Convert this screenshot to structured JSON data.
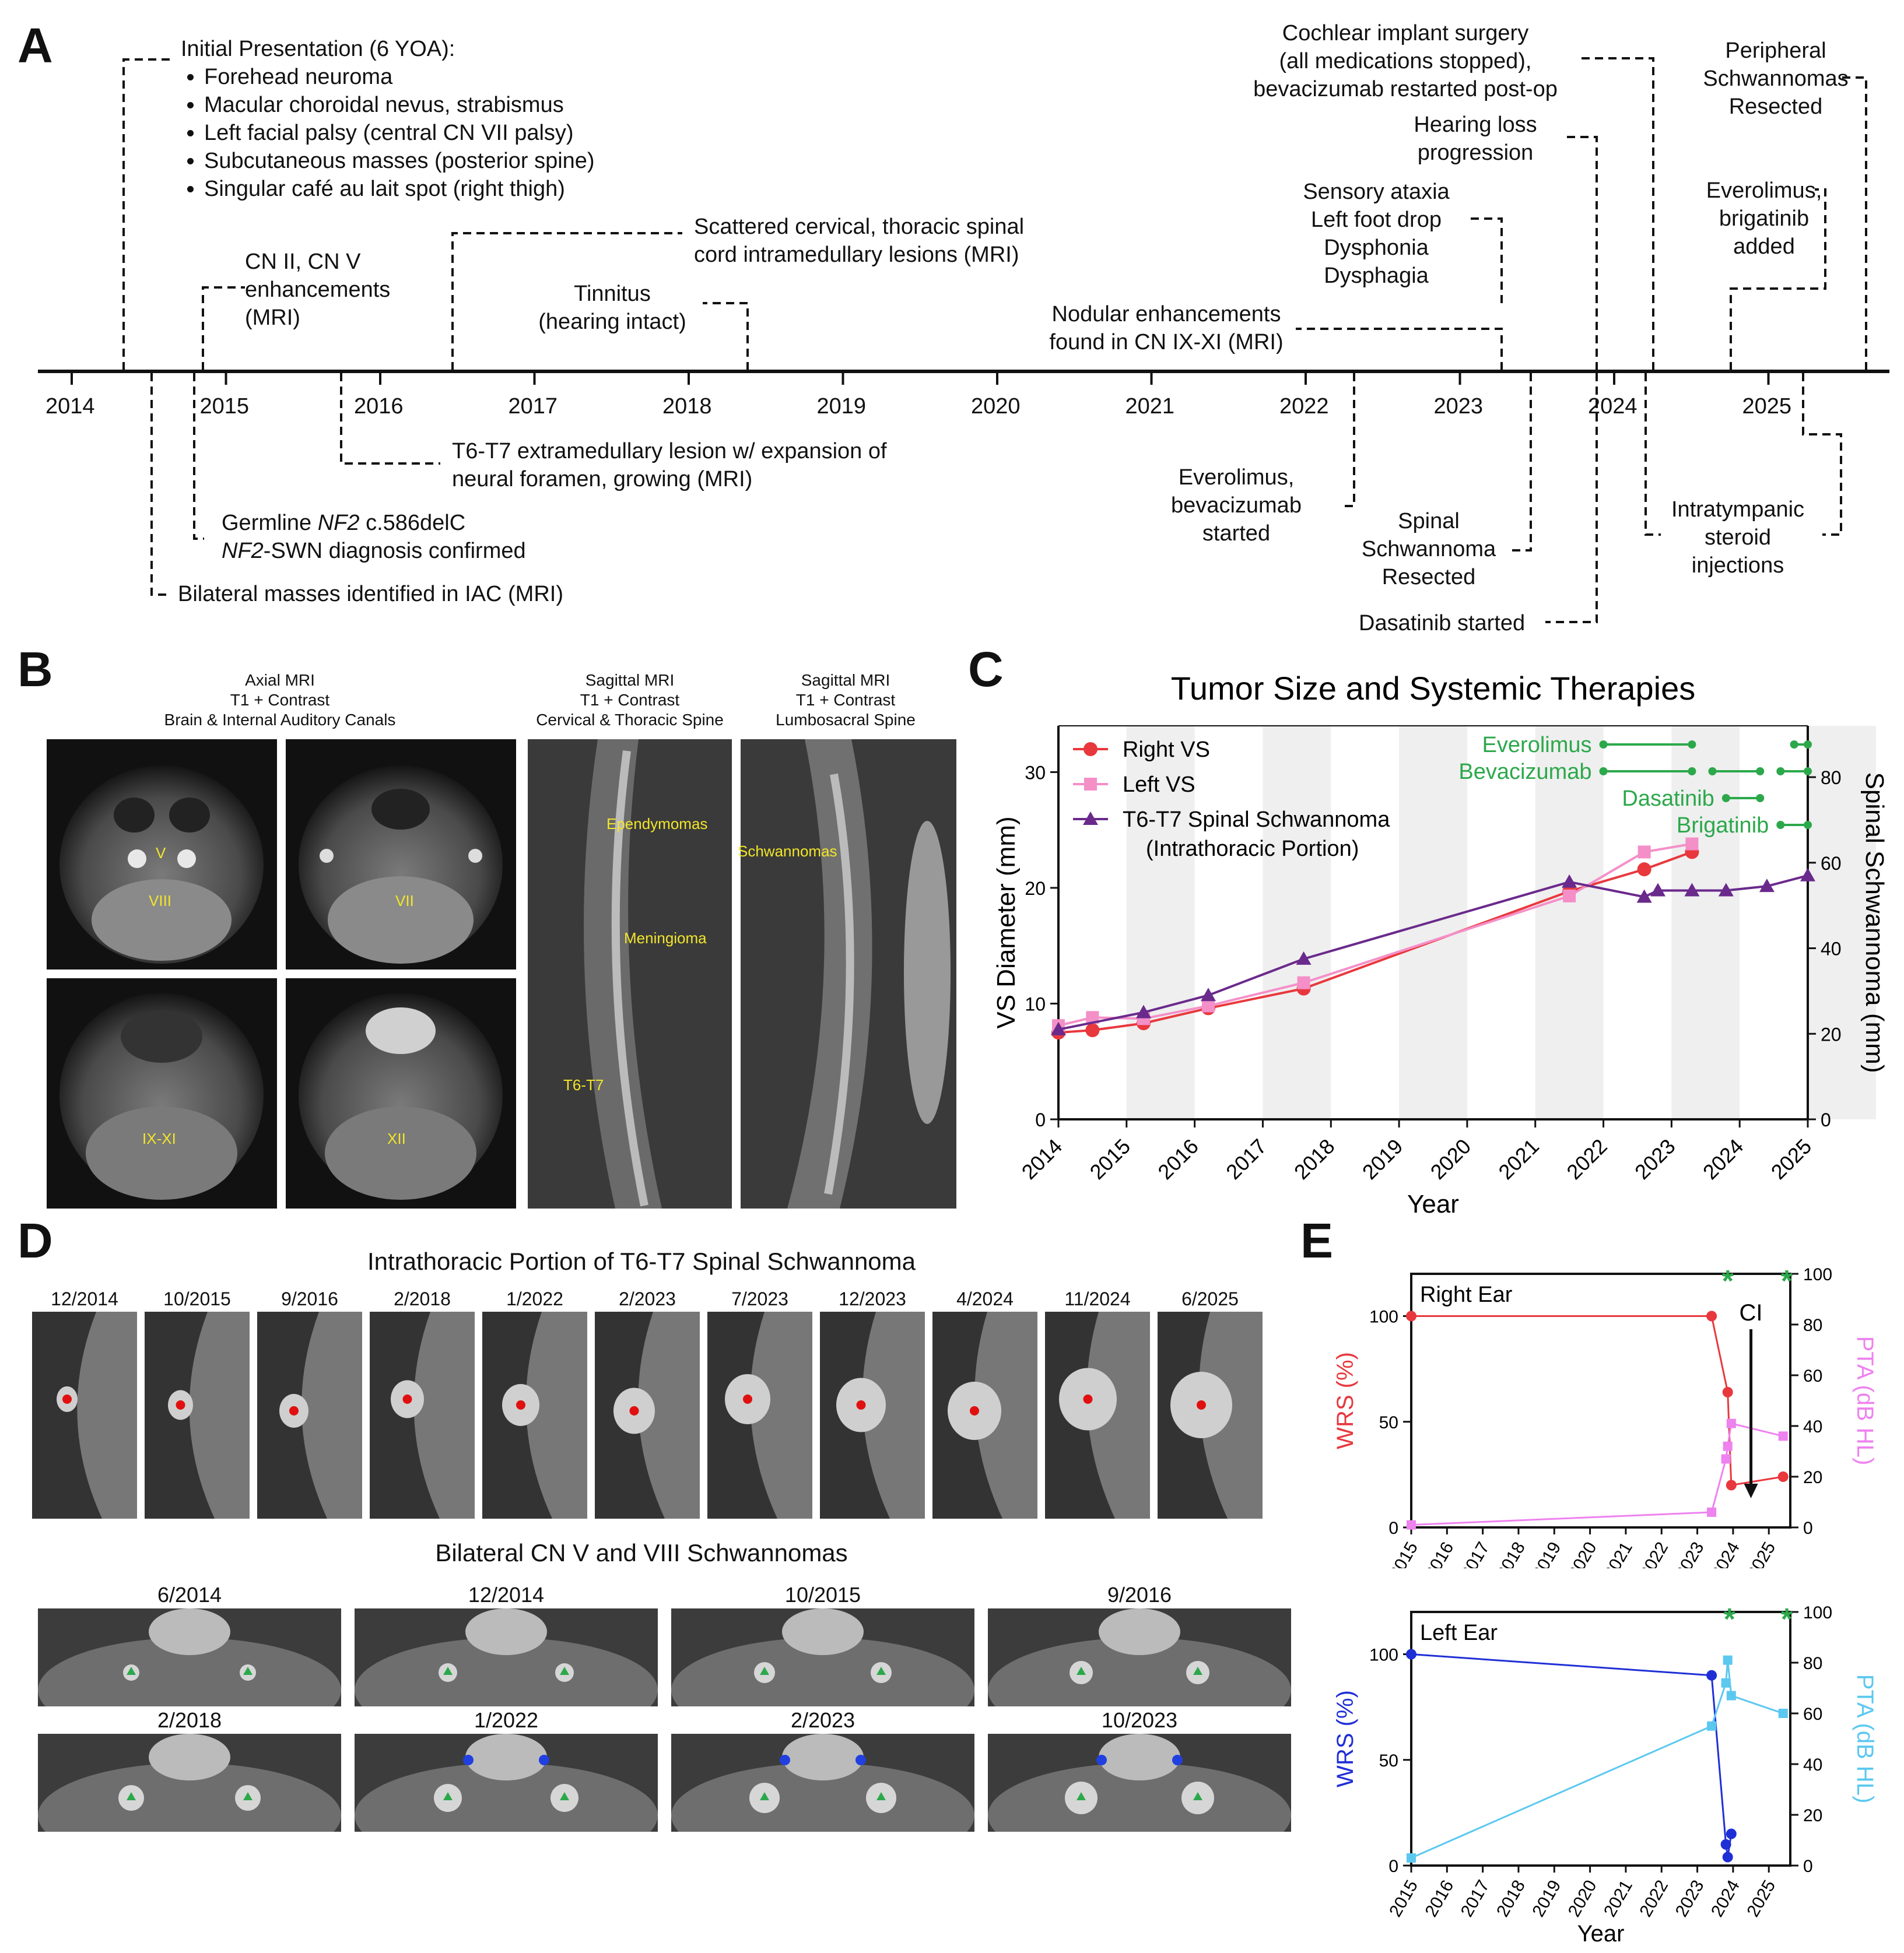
{
  "panels": {
    "A": "A",
    "B": "B",
    "C": "C",
    "D": "D",
    "E": "E"
  },
  "timeline": {
    "years": [
      "2014",
      "2015",
      "2016",
      "2017",
      "2018",
      "2019",
      "2020",
      "2021",
      "2022",
      "2023",
      "2024",
      "2025"
    ],
    "initial_title": "Initial Presentation (6 YOA):",
    "initial_items": [
      "Forehead neuroma",
      "Macular choroidal nevus, strabismus",
      "Left facial palsy (central CN VII palsy)",
      "Subcutaneous masses (posterior spine)",
      "Singular café au lait spot (right thigh)"
    ],
    "cn2": [
      "CN II, CN V",
      "enhancements",
      "(MRI)"
    ],
    "scattered": [
      "Scattered cervical, thoracic spinal",
      "cord intramedullary lesions (MRI)"
    ],
    "tinnitus": [
      "Tinnitus",
      "(hearing intact)"
    ],
    "nodular": [
      "Nodular enhancements",
      "found in CN IX-XI (MRI)"
    ],
    "sensory": [
      "Sensory ataxia",
      "Left foot drop",
      "Dysphonia",
      "Dysphagia"
    ],
    "cochlear": [
      "Cochlear implant surgery",
      "(all medications stopped),",
      "bevacizumab restarted post-op"
    ],
    "hearing": [
      "Hearing loss",
      "progression"
    ],
    "peripheral": [
      "Peripheral",
      "Schwannomas",
      "Resected"
    ],
    "evero_brig": [
      "Everolimus,",
      "brigatinib",
      "added"
    ],
    "t6": [
      "T6-T7 extramedullary lesion w/ expansion of",
      "neural foramen, growing (MRI)"
    ],
    "germline_1a": "Germline ",
    "germline_1b": "NF2",
    "germline_1c": " c.586delC",
    "germline_2a": "NF2",
    "germline_2b": "-SWN diagnosis confirmed",
    "bilateral": "Bilateral masses identified in IAC (MRI)",
    "evero_bev": [
      "Everolimus,",
      "bevacizumab",
      "started"
    ],
    "spinal": [
      "Spinal",
      "Schwannoma",
      "Resected"
    ],
    "dasatinib": "Dasatinib started",
    "intratympanic": [
      "Intratympanic",
      "steroid",
      "injections"
    ]
  },
  "panel_b": {
    "cap1": [
      "Axial MRI",
      "T1 + Contrast",
      "Brain & Internal Auditory Canals"
    ],
    "cap2": [
      "Sagittal MRI",
      "T1 + Contrast",
      "Cervical & Thoracic Spine"
    ],
    "cap3": [
      "Sagittal MRI",
      "T1 + Contrast",
      "Lumbosacral Spine"
    ],
    "labels": {
      "v": "V",
      "viii": "VIII",
      "vii": "VII",
      "ix": "IX-XI",
      "xii": "XII",
      "epen": "Ependymomas",
      "men": "Meningioma",
      "t6": "T6-T7",
      "sch": "Schwannomas"
    }
  },
  "panel_d": {
    "title1": "Intrathoracic Portion of T6-T7 Spinal Schwannoma",
    "dates1": [
      "12/2014",
      "10/2015",
      "9/2016",
      "2/2018",
      "1/2022",
      "2/2023",
      "7/2023",
      "12/2023",
      "4/2024",
      "11/2024",
      "6/2025"
    ],
    "title2": "Bilateral CN V and VIII Schwannomas",
    "dates2": [
      "6/2014",
      "12/2014",
      "10/2015",
      "9/2016",
      "2/2018",
      "1/2022",
      "2/2023",
      "10/2023"
    ]
  },
  "chart_data": [
    {
      "type": "line",
      "title": "Tumor Size and Systemic Therapies",
      "xlabel": "Year",
      "ylabel": "VS Diameter (mm)",
      "y2label": "Spinal Schwannoma (mm)",
      "xlim": [
        2014,
        2025
      ],
      "ylim": [
        0,
        34
      ],
      "y2lim": [
        0,
        92
      ],
      "xticks": [
        "2014",
        "2015",
        "2016",
        "2017",
        "2018",
        "2019",
        "2020",
        "2021",
        "2022",
        "2023",
        "2024",
        "2025"
      ],
      "yticks": [
        0,
        10,
        20,
        30
      ],
      "y2ticks": [
        0,
        20,
        40,
        60,
        80
      ],
      "legend_position": "top-left",
      "series": [
        {
          "name": "Right VS",
          "axis": "left",
          "color": "#e8383d",
          "marker": "circle",
          "x": [
            2014.0,
            2014.5,
            2015.25,
            2016.2,
            2017.6,
            2021.5,
            2022.6,
            2023.3
          ],
          "y": [
            7.5,
            7.7,
            8.3,
            9.6,
            11.3,
            19.7,
            21.6,
            23.1
          ]
        },
        {
          "name": "Left VS",
          "axis": "left",
          "color": "#f48fc8",
          "marker": "square",
          "x": [
            2014.0,
            2014.5,
            2015.25,
            2016.2,
            2017.6,
            2021.5,
            2022.6,
            2023.3
          ],
          "y": [
            8.1,
            8.8,
            8.7,
            9.8,
            11.8,
            19.3,
            23.1,
            23.8
          ]
        },
        {
          "name": "T6-T7 Spinal Schwannoma",
          "name2": "(Intrathoracic Portion)",
          "axis": "right",
          "color": "#6a2a8c",
          "marker": "triangle",
          "x": [
            2014.0,
            2015.25,
            2016.2,
            2017.6,
            2021.5,
            2022.6,
            2022.8,
            2023.3,
            2023.8,
            2024.4,
            2025.0
          ],
          "y": [
            21,
            25,
            29,
            37.5,
            55.5,
            52,
            53.5,
            53.5,
            53.5,
            54.5,
            57
          ]
        }
      ],
      "therapies": [
        {
          "name": "Everolimus",
          "segments": [
            [
              2022.0,
              2023.3
            ],
            [
              2024.8,
              2025.1
            ]
          ]
        },
        {
          "name": "Bevacizumab",
          "segments": [
            [
              2022.0,
              2023.3
            ],
            [
              2023.6,
              2024.3
            ],
            [
              2024.6,
              2025.1
            ]
          ]
        },
        {
          "name": "Dasatinib",
          "segments": [
            [
              2023.8,
              2024.3
            ]
          ]
        },
        {
          "name": "Brigatinib",
          "segments": [
            [
              2024.6,
              2025.1
            ]
          ]
        }
      ],
      "therapy_color": "#2ca84b",
      "shaded_bands": true
    },
    {
      "type": "line",
      "title": "Right Ear",
      "xlabel": "",
      "ylabel": "WRS (%)",
      "y2label": "PTA (dB HL)",
      "xlim": [
        2015,
        2025.6
      ],
      "ylim": [
        0,
        120
      ],
      "y2lim": [
        0,
        100
      ],
      "xticks": [
        "2015",
        "2016",
        "2017",
        "2018",
        "2019",
        "2020",
        "2021",
        "2022",
        "2023",
        "2024",
        "2025"
      ],
      "yticks": [
        0,
        50,
        100
      ],
      "y2ticks": [
        0,
        20,
        40,
        60,
        80,
        100
      ],
      "annotation": "CI",
      "star_marks": [
        2023.85,
        2025.5
      ],
      "series": [
        {
          "name": "WRS",
          "axis": "left",
          "color": "#e8383d",
          "x": [
            2015.0,
            2023.4,
            2023.85,
            2023.95,
            2025.4
          ],
          "y": [
            100,
            100,
            64,
            20,
            24
          ]
        },
        {
          "name": "PTA",
          "axis": "right",
          "color": "#ee82ee",
          "x": [
            2015.0,
            2023.4,
            2023.8,
            2023.85,
            2023.95,
            2025.4
          ],
          "y": [
            1,
            6,
            27,
            32,
            41,
            36
          ]
        }
      ]
    },
    {
      "type": "line",
      "title": "Left Ear",
      "xlabel": "Year",
      "ylabel": "WRS (%)",
      "y2label": "PTA (dB HL)",
      "xlim": [
        2015,
        2025.6
      ],
      "ylim": [
        0,
        120
      ],
      "y2lim": [
        0,
        100
      ],
      "xticks": [
        "2015",
        "2016",
        "2017",
        "2018",
        "2019",
        "2020",
        "2021",
        "2022",
        "2023",
        "2024",
        "2025"
      ],
      "yticks": [
        0,
        50,
        100
      ],
      "y2ticks": [
        0,
        20,
        40,
        60,
        80,
        100
      ],
      "star_marks": [
        2023.9,
        2025.5
      ],
      "series": [
        {
          "name": "WRS",
          "axis": "left",
          "color": "#1f2fd6",
          "x": [
            2015.0,
            2023.4,
            2023.8,
            2023.85,
            2023.95
          ],
          "y": [
            100,
            90,
            10,
            4,
            15
          ]
        },
        {
          "name": "PTA",
          "axis": "right",
          "color": "#5bc8f0",
          "x": [
            2015.0,
            2023.4,
            2023.8,
            2023.85,
            2023.95,
            2025.4
          ],
          "y": [
            3,
            55,
            72,
            81,
            67,
            60
          ]
        }
      ]
    }
  ]
}
